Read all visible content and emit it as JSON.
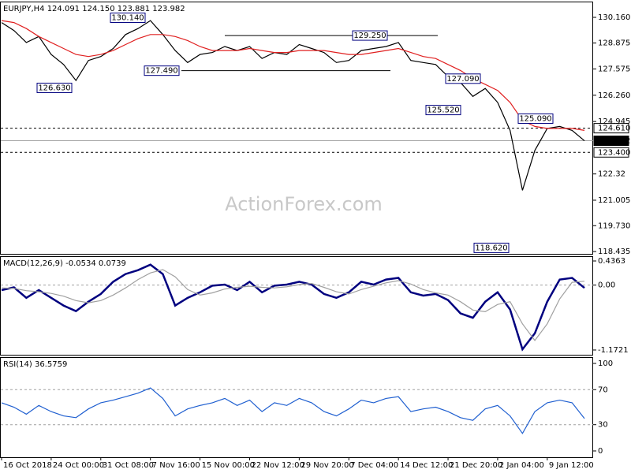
{
  "chart_data": [
    {
      "type": "line",
      "title": "EURJPY,H4  124.091 124.150 123.881 123.982",
      "ylim": [
        118.32,
        130.95
      ],
      "yticks": [
        {
          "value": 130.16,
          "label": "130.160"
        },
        {
          "value": 128.875,
          "label": "128.875"
        },
        127.575,
        {
          "value": 126.26,
          "label": "126.260"
        },
        124.945,
        122.32,
        {
          "value": 121.005,
          "label": "121.005"
        },
        {
          "value": 119.73,
          "label": "119.730"
        },
        118.435
      ],
      "series": [
        {
          "color": "#000000",
          "values": [
            129.9,
            129.5,
            128.9,
            129.2,
            128.3,
            127.8,
            127.0,
            128.0,
            128.2,
            128.6,
            129.3,
            129.6,
            130.0,
            129.3,
            128.5,
            127.9,
            128.3,
            128.4,
            128.7,
            128.5,
            128.7,
            128.1,
            128.4,
            128.3,
            128.8,
            128.6,
            128.4,
            127.9,
            128.0,
            128.5,
            128.6,
            128.7,
            128.9,
            128.0,
            127.9,
            127.8,
            127.2,
            126.9,
            126.2,
            126.6,
            125.9,
            124.5,
            121.5,
            123.5,
            124.6,
            124.7,
            124.5,
            123.98
          ]
        },
        {
          "color": "#e02020",
          "values": [
            130.0,
            129.9,
            129.6,
            129.2,
            128.9,
            128.6,
            128.3,
            128.2,
            128.3,
            128.5,
            128.8,
            129.1,
            129.3,
            129.3,
            129.2,
            129.0,
            128.7,
            128.5,
            128.5,
            128.5,
            128.6,
            128.5,
            128.4,
            128.4,
            128.5,
            128.5,
            128.5,
            128.4,
            128.3,
            128.3,
            128.4,
            128.5,
            128.6,
            128.4,
            128.2,
            128.1,
            127.8,
            127.5,
            127.1,
            126.8,
            126.5,
            125.9,
            125.0,
            124.7,
            124.6,
            124.6,
            124.6,
            124.5
          ]
        }
      ],
      "levels": [
        {
          "value": 124.61,
          "label": "124.610",
          "style": "dashed"
        },
        {
          "value": 123.982,
          "label": "123.982",
          "style": "current"
        },
        {
          "value": 123.4,
          "label": "123.400",
          "style": "dashed"
        }
      ],
      "annotations": [
        {
          "value": 126.63,
          "label": "126.630"
        },
        {
          "value": 130.14,
          "label": "130.140"
        },
        {
          "value": 127.49,
          "label": "127.490"
        },
        {
          "value": 129.25,
          "label": "129.250"
        },
        {
          "value": 127.09,
          "label": "127.090"
        },
        {
          "value": 125.52,
          "label": "125.520"
        },
        {
          "value": 125.09,
          "label": "125.090"
        },
        {
          "value": 118.62,
          "label": "118.620"
        }
      ],
      "watermark": "ActionForex.com"
    },
    {
      "type": "line",
      "title": "MACD(12,26,9) -0.0534 0.0739",
      "ylim": [
        -1.258,
        0.522
      ],
      "yticks": [
        0.4363,
        {
          "value": 0,
          "label": "0.00"
        },
        -1.1721
      ],
      "levels": [
        0
      ],
      "series": [
        {
          "color": "#00007f",
          "values": [
            -0.09,
            -0.04,
            -0.23,
            -0.09,
            -0.23,
            -0.37,
            -0.47,
            -0.3,
            -0.16,
            0.06,
            0.2,
            0.27,
            0.37,
            0.2,
            -0.37,
            -0.23,
            -0.13,
            -0.01,
            0.01,
            -0.09,
            0.06,
            -0.13,
            -0.01,
            0.01,
            0.06,
            0.01,
            -0.16,
            -0.23,
            -0.13,
            0.06,
            0.01,
            0.1,
            0.13,
            -0.13,
            -0.19,
            -0.16,
            -0.27,
            -0.51,
            -0.59,
            -0.3,
            -0.13,
            -0.44,
            -1.16,
            -0.87,
            -0.3,
            0.1,
            0.13,
            -0.05
          ]
        },
        {
          "color": "#a0a0a0",
          "values": [
            -0.05,
            -0.06,
            -0.1,
            -0.12,
            -0.15,
            -0.2,
            -0.28,
            -0.32,
            -0.28,
            -0.18,
            -0.05,
            0.1,
            0.22,
            0.28,
            0.15,
            -0.08,
            -0.18,
            -0.14,
            -0.07,
            -0.04,
            -0.02,
            -0.04,
            -0.05,
            -0.03,
            0.01,
            0.03,
            -0.04,
            -0.12,
            -0.16,
            -0.08,
            -0.02,
            0.04,
            0.08,
            0.02,
            -0.08,
            -0.14,
            -0.18,
            -0.3,
            -0.45,
            -0.48,
            -0.35,
            -0.3,
            -0.7,
            -1.0,
            -0.7,
            -0.25,
            0.05,
            0.07
          ]
        }
      ]
    },
    {
      "type": "line",
      "title": "RSI(14) 36.5759",
      "ylim": [
        -7.2,
        107.2
      ],
      "yticks": [
        100,
        70,
        30,
        0
      ],
      "levels": [
        70,
        30
      ],
      "categories": [
        "16 Oct 2018",
        null,
        null,
        null,
        "24 Oct 00:00",
        null,
        null,
        null,
        "31 Oct 08:00",
        null,
        null,
        null,
        "7 Nov 16:00",
        null,
        null,
        null,
        "15 Nov 00:00",
        null,
        null,
        null,
        "22 Nov 12:00",
        null,
        null,
        null,
        "29 Nov 20:00",
        null,
        null,
        null,
        "7 Dec 04:00",
        null,
        null,
        null,
        "14 Dec 12:00",
        null,
        null,
        null,
        "21 Dec 20:00",
        null,
        null,
        null,
        "2 Jan 04:00",
        null,
        null,
        null,
        "9 Jan 12:00",
        null,
        null,
        null
      ],
      "series": [
        {
          "color": "#1f5fd0",
          "values": [
            55,
            50,
            42,
            52,
            45,
            40,
            38,
            48,
            55,
            58,
            62,
            66,
            72,
            60,
            40,
            48,
            52,
            55,
            60,
            52,
            58,
            45,
            55,
            52,
            60,
            55,
            45,
            40,
            48,
            58,
            55,
            60,
            62,
            45,
            48,
            50,
            45,
            38,
            35,
            48,
            52,
            40,
            20,
            45,
            55,
            58,
            55,
            37
          ]
        }
      ]
    }
  ]
}
